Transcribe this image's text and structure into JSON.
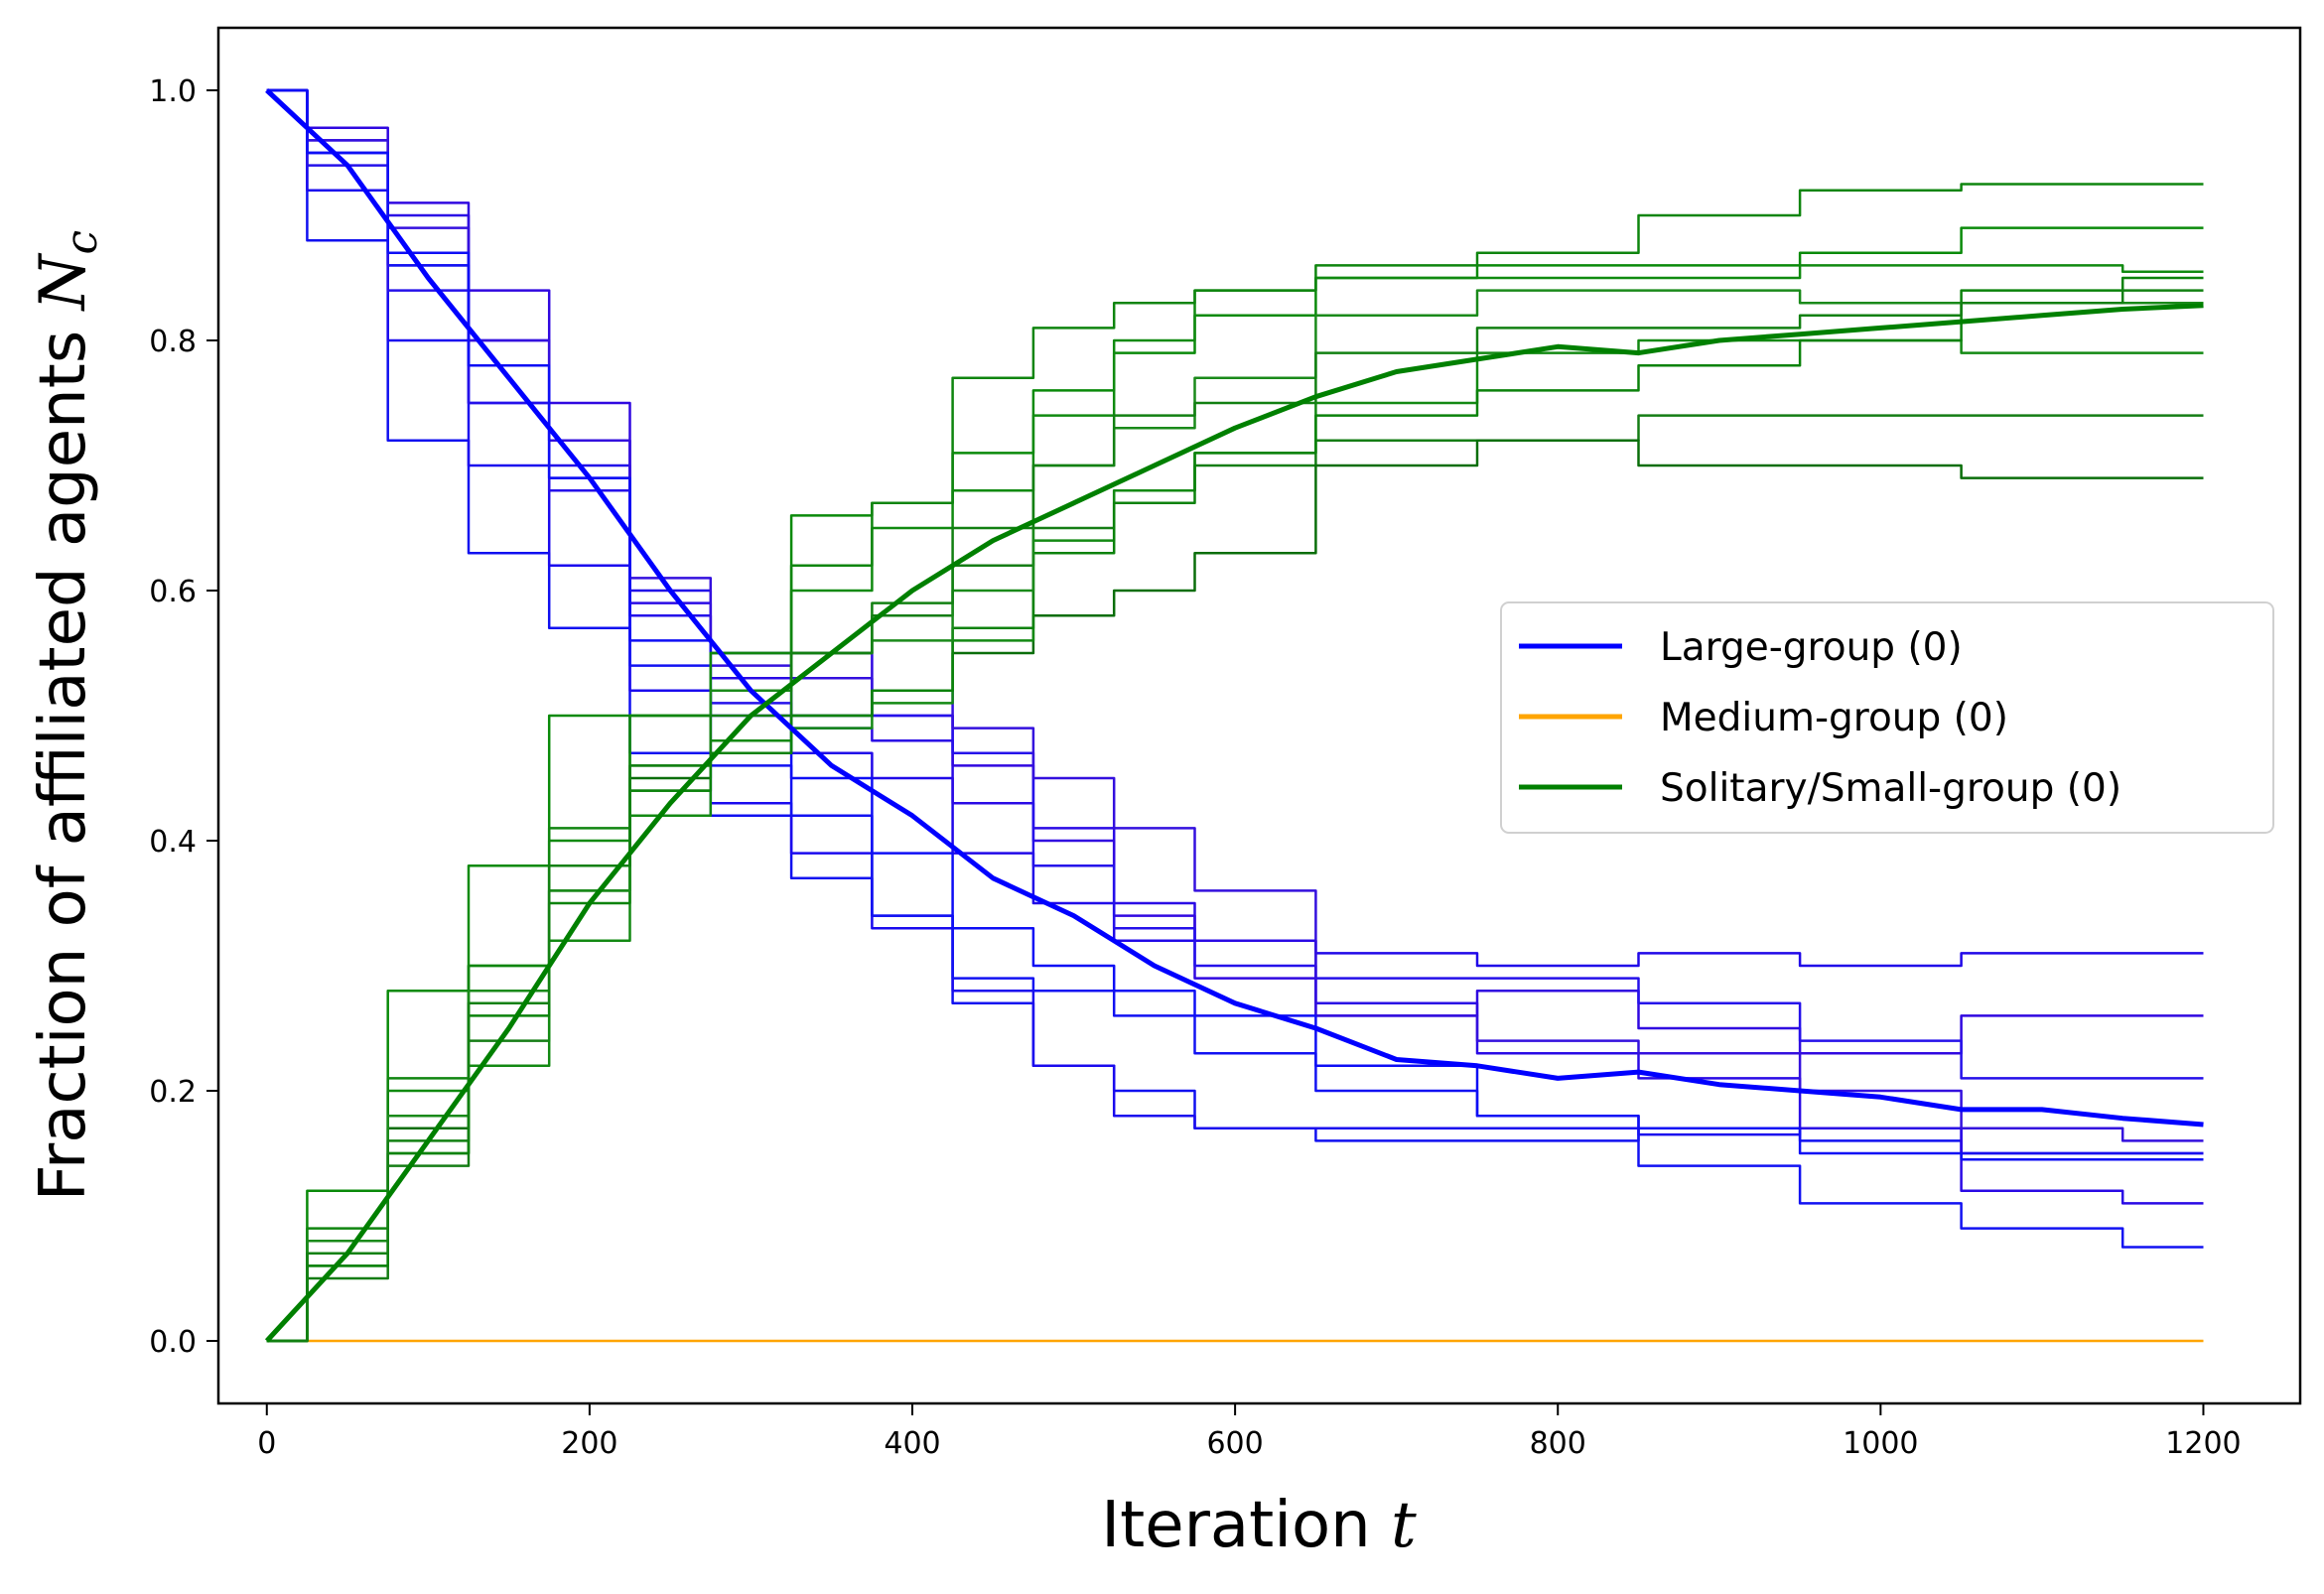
{
  "chart_data": {
    "type": "line",
    "title": "",
    "xlabel": "Iteration",
    "xlabel_var": "t",
    "ylabel": "Fraction of affiliated agents",
    "ylabel_var": "N",
    "ylabel_sub": "c",
    "xlim": [
      -30,
      1260
    ],
    "ylim": [
      -0.05,
      1.05
    ],
    "xticks": [
      0,
      200,
      400,
      600,
      800,
      1000,
      1200
    ],
    "yticks": [
      0.0,
      0.2,
      0.4,
      0.6,
      0.8,
      1.0
    ],
    "xtick_labels": [
      "0",
      "200",
      "400",
      "600",
      "800",
      "1000",
      "1200"
    ],
    "ytick_labels": [
      "0.0",
      "0.2",
      "0.4",
      "0.6",
      "0.8",
      "1.0"
    ],
    "grid": false,
    "legend_position": "center-right",
    "legend": [
      {
        "label": "Large-group (0)",
        "color": "#0000ff"
      },
      {
        "label": "Medium-group (0)",
        "color": "#ffa500"
      },
      {
        "label": "Solitary/Small-group (0)",
        "color": "#008000"
      }
    ],
    "series": [
      {
        "group": "large",
        "role": "mean",
        "color": "#0000ff",
        "x": [
          0,
          50,
          100,
          150,
          200,
          250,
          300,
          350,
          400,
          450,
          500,
          550,
          600,
          650,
          700,
          750,
          800,
          850,
          900,
          950,
          1000,
          1050,
          1100,
          1150,
          1200
        ],
        "y": [
          1.0,
          0.94,
          0.85,
          0.77,
          0.69,
          0.6,
          0.52,
          0.46,
          0.42,
          0.37,
          0.34,
          0.3,
          0.27,
          0.25,
          0.225,
          0.22,
          0.21,
          0.215,
          0.205,
          0.2,
          0.195,
          0.185,
          0.185,
          0.178,
          0.173
        ]
      },
      {
        "group": "large",
        "role": "run",
        "color": "#1010f0",
        "x": [
          0,
          50,
          100,
          150,
          200,
          250,
          300,
          350,
          400,
          450,
          500,
          550,
          600,
          700,
          800,
          900,
          1000,
          1100,
          1200
        ],
        "y": [
          1.0,
          0.88,
          0.72,
          0.63,
          0.57,
          0.47,
          0.42,
          0.37,
          0.34,
          0.27,
          0.22,
          0.2,
          0.17,
          0.16,
          0.16,
          0.17,
          0.16,
          0.15,
          0.15
        ]
      },
      {
        "group": "large",
        "role": "run",
        "color": "#1a0aee",
        "x": [
          0,
          50,
          100,
          150,
          200,
          250,
          300,
          350,
          400,
          450,
          500,
          550,
          600,
          700,
          800,
          900,
          1000,
          1100,
          1200
        ],
        "y": [
          1.0,
          0.92,
          0.8,
          0.7,
          0.62,
          0.52,
          0.43,
          0.39,
          0.33,
          0.28,
          0.22,
          0.18,
          0.17,
          0.17,
          0.17,
          0.165,
          0.17,
          0.15,
          0.15
        ]
      },
      {
        "group": "large",
        "role": "run",
        "color": "#2008e8",
        "x": [
          0,
          50,
          100,
          150,
          200,
          250,
          300,
          350,
          400,
          450,
          500,
          550,
          600,
          700,
          800,
          900,
          1000,
          1100,
          1200
        ],
        "y": [
          1.0,
          0.95,
          0.86,
          0.78,
          0.7,
          0.6,
          0.5,
          0.47,
          0.45,
          0.39,
          0.35,
          0.32,
          0.32,
          0.31,
          0.3,
          0.31,
          0.3,
          0.31,
          0.31
        ]
      },
      {
        "group": "large",
        "role": "run",
        "color": "#2a0ae5",
        "x": [
          0,
          50,
          100,
          150,
          200,
          250,
          300,
          350,
          400,
          450,
          500,
          550,
          600,
          700,
          800,
          900,
          1000,
          1100,
          1200
        ],
        "y": [
          1.0,
          0.96,
          0.9,
          0.8,
          0.72,
          0.59,
          0.53,
          0.49,
          0.48,
          0.43,
          0.41,
          0.35,
          0.32,
          0.27,
          0.23,
          0.21,
          0.17,
          0.12,
          0.11
        ]
      },
      {
        "group": "large",
        "role": "run",
        "color": "#3008e0",
        "x": [
          0,
          50,
          100,
          150,
          200,
          250,
          300,
          350,
          400,
          450,
          500,
          550,
          600,
          700,
          800,
          900,
          1000,
          1100,
          1200
        ],
        "y": [
          1.0,
          0.97,
          0.91,
          0.84,
          0.75,
          0.58,
          0.55,
          0.55,
          0.5,
          0.46,
          0.4,
          0.34,
          0.29,
          0.26,
          0.28,
          0.25,
          0.23,
          0.26,
          0.26
        ]
      },
      {
        "group": "large",
        "role": "run",
        "color": "#1212f2",
        "x": [
          0,
          50,
          100,
          150,
          200,
          250,
          300,
          350,
          400,
          450,
          500,
          550,
          600,
          700,
          800,
          900,
          1000,
          1100,
          1200
        ],
        "y": [
          1.0,
          0.95,
          0.86,
          0.75,
          0.69,
          0.54,
          0.46,
          0.42,
          0.34,
          0.29,
          0.28,
          0.26,
          0.23,
          0.2,
          0.18,
          0.14,
          0.11,
          0.09,
          0.075
        ]
      },
      {
        "group": "large",
        "role": "run",
        "color": "#2510ea",
        "x": [
          0,
          50,
          100,
          150,
          200,
          250,
          300,
          350,
          400,
          450,
          500,
          550,
          600,
          700,
          800,
          900,
          1000,
          1100,
          1200
        ],
        "y": [
          1.0,
          0.94,
          0.84,
          0.75,
          0.68,
          0.58,
          0.51,
          0.5,
          0.5,
          0.47,
          0.38,
          0.33,
          0.3,
          0.29,
          0.29,
          0.27,
          0.24,
          0.21,
          0.21
        ]
      },
      {
        "group": "large",
        "role": "run",
        "color": "#3410de",
        "x": [
          0,
          50,
          100,
          150,
          200,
          250,
          300,
          350,
          400,
          450,
          500,
          550,
          600,
          700,
          800,
          900,
          1000,
          1100,
          1200
        ],
        "y": [
          1.0,
          0.96,
          0.89,
          0.8,
          0.72,
          0.61,
          0.54,
          0.53,
          0.52,
          0.49,
          0.45,
          0.41,
          0.36,
          0.26,
          0.24,
          0.23,
          0.2,
          0.17,
          0.16
        ]
      },
      {
        "group": "large",
        "role": "run",
        "color": "#0e0ef5",
        "x": [
          0,
          50,
          100,
          150,
          200,
          250,
          300,
          350,
          400,
          450,
          500,
          550,
          600,
          700,
          800,
          900,
          1000,
          1100,
          1200
        ],
        "y": [
          1.0,
          0.95,
          0.87,
          0.78,
          0.69,
          0.56,
          0.48,
          0.45,
          0.39,
          0.33,
          0.3,
          0.28,
          0.26,
          0.22,
          0.18,
          0.17,
          0.15,
          0.145,
          0.145
        ]
      },
      {
        "group": "medium",
        "role": "run",
        "color": "#ffa500",
        "x": [
          0,
          1200
        ],
        "y": [
          0.0,
          0.0
        ]
      },
      {
        "group": "small",
        "role": "mean",
        "color": "#008000",
        "x": [
          0,
          50,
          100,
          150,
          200,
          250,
          300,
          350,
          400,
          450,
          500,
          550,
          600,
          650,
          700,
          750,
          800,
          850,
          900,
          950,
          1000,
          1050,
          1100,
          1150,
          1200
        ],
        "y": [
          0.0,
          0.07,
          0.16,
          0.25,
          0.35,
          0.43,
          0.5,
          0.55,
          0.6,
          0.64,
          0.67,
          0.7,
          0.73,
          0.755,
          0.775,
          0.785,
          0.795,
          0.79,
          0.8,
          0.805,
          0.81,
          0.815,
          0.82,
          0.825,
          0.828
        ]
      },
      {
        "group": "small",
        "role": "run",
        "color": "#0a8a0a",
        "x": [
          0,
          50,
          100,
          150,
          200,
          250,
          300,
          350,
          400,
          450,
          500,
          550,
          600,
          700,
          800,
          900,
          1000,
          1100,
          1200
        ],
        "y": [
          0.0,
          0.12,
          0.28,
          0.38,
          0.5,
          0.5,
          0.55,
          0.66,
          0.67,
          0.71,
          0.76,
          0.79,
          0.82,
          0.85,
          0.86,
          0.86,
          0.87,
          0.89,
          0.89
        ]
      },
      {
        "group": "small",
        "role": "run",
        "color": "#108a10",
        "x": [
          0,
          50,
          100,
          150,
          200,
          250,
          300,
          350,
          400,
          450,
          500,
          550,
          600,
          700,
          800,
          900,
          1000,
          1100,
          1200
        ],
        "y": [
          0.0,
          0.08,
          0.2,
          0.3,
          0.4,
          0.5,
          0.52,
          0.6,
          0.65,
          0.68,
          0.74,
          0.8,
          0.84,
          0.85,
          0.85,
          0.85,
          0.86,
          0.86,
          0.855
        ]
      },
      {
        "group": "small",
        "role": "run",
        "color": "#157d15",
        "x": [
          0,
          50,
          100,
          150,
          200,
          250,
          300,
          350,
          400,
          450,
          500,
          550,
          600,
          700,
          800,
          900,
          1000,
          1100,
          1200
        ],
        "y": [
          0.0,
          0.05,
          0.14,
          0.24,
          0.38,
          0.44,
          0.52,
          0.55,
          0.58,
          0.62,
          0.65,
          0.68,
          0.7,
          0.72,
          0.72,
          0.74,
          0.74,
          0.74,
          0.74
        ]
      },
      {
        "group": "small",
        "role": "run",
        "color": "#0a6e0a",
        "x": [
          0,
          50,
          100,
          150,
          200,
          250,
          300,
          350,
          400,
          450,
          500,
          550,
          600,
          700,
          800,
          900,
          1000,
          1100,
          1200
        ],
        "y": [
          0.0,
          0.07,
          0.17,
          0.27,
          0.36,
          0.45,
          0.47,
          0.5,
          0.52,
          0.55,
          0.58,
          0.6,
          0.63,
          0.7,
          0.72,
          0.7,
          0.7,
          0.69,
          0.69
        ]
      },
      {
        "group": "small",
        "role": "run",
        "color": "#138913",
        "x": [
          0,
          50,
          100,
          150,
          200,
          250,
          300,
          350,
          400,
          450,
          500,
          550,
          600,
          700,
          800,
          900,
          1000,
          1100,
          1200
        ],
        "y": [
          0.0,
          0.06,
          0.15,
          0.22,
          0.32,
          0.42,
          0.48,
          0.49,
          0.51,
          0.56,
          0.64,
          0.68,
          0.71,
          0.75,
          0.79,
          0.8,
          0.8,
          0.79,
          0.79
        ]
      },
      {
        "group": "small",
        "role": "run",
        "color": "#0b820b",
        "x": [
          0,
          50,
          100,
          150,
          200,
          250,
          300,
          350,
          400,
          450,
          500,
          550,
          600,
          700,
          800,
          900,
          1000,
          1100,
          1200
        ],
        "y": [
          0.0,
          0.06,
          0.15,
          0.26,
          0.35,
          0.44,
          0.47,
          0.5,
          0.52,
          0.57,
          0.63,
          0.67,
          0.71,
          0.74,
          0.76,
          0.78,
          0.8,
          0.84,
          0.85
        ]
      },
      {
        "group": "small",
        "role": "run",
        "color": "#0f850f",
        "x": [
          0,
          50,
          100,
          150,
          200,
          250,
          300,
          350,
          400,
          450,
          500,
          550,
          600,
          700,
          800,
          900,
          1000,
          1100,
          1200
        ],
        "y": [
          0.0,
          0.09,
          0.21,
          0.3,
          0.41,
          0.5,
          0.55,
          0.62,
          0.67,
          0.77,
          0.81,
          0.83,
          0.84,
          0.86,
          0.87,
          0.9,
          0.92,
          0.925,
          0.925
        ]
      },
      {
        "group": "small",
        "role": "run",
        "color": "#1a8a1a",
        "x": [
          0,
          50,
          100,
          150,
          200,
          250,
          300,
          350,
          400,
          450,
          500,
          550,
          600,
          700,
          800,
          900,
          1000,
          1100,
          1200
        ],
        "y": [
          0.0,
          0.08,
          0.18,
          0.28,
          0.36,
          0.46,
          0.52,
          0.55,
          0.56,
          0.6,
          0.7,
          0.73,
          0.77,
          0.82,
          0.84,
          0.84,
          0.83,
          0.83,
          0.83
        ]
      },
      {
        "group": "small",
        "role": "run",
        "color": "#128012",
        "x": [
          0,
          50,
          100,
          150,
          200,
          250,
          300,
          350,
          400,
          450,
          500,
          550,
          600,
          700,
          800,
          900,
          1000,
          1100,
          1200
        ],
        "y": [
          0.0,
          0.07,
          0.16,
          0.27,
          0.38,
          0.46,
          0.5,
          0.55,
          0.59,
          0.65,
          0.7,
          0.74,
          0.75,
          0.79,
          0.81,
          0.81,
          0.82,
          0.83,
          0.84
        ]
      }
    ]
  }
}
